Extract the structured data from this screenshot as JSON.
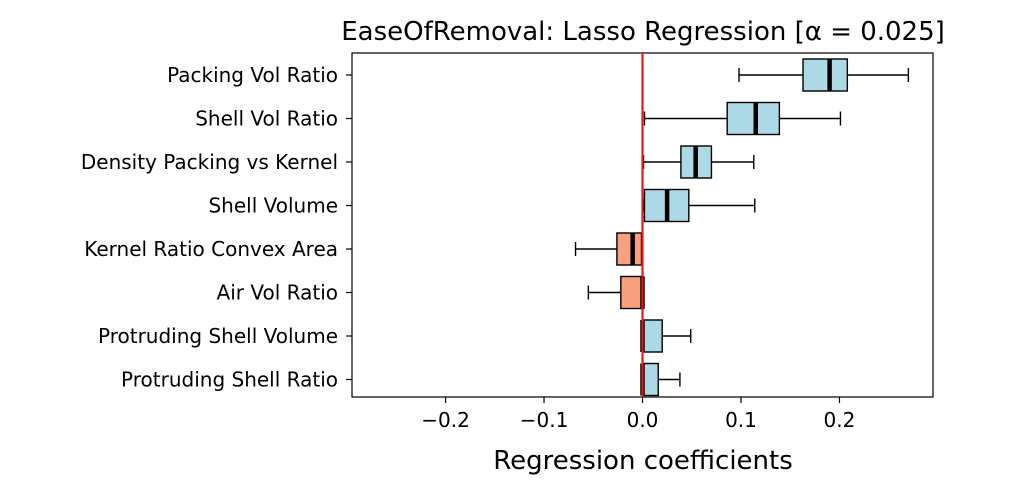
{
  "chart_data": {
    "type": "box",
    "title": "EaseOfRemoval: Lasso Regression [α = 0.025]",
    "xlabel": "Regression coefficients",
    "ylabel": "",
    "xlim": [
      -0.295,
      0.295
    ],
    "xticks": [
      -0.2,
      -0.1,
      0.0,
      0.1,
      0.2
    ],
    "xtick_labels": [
      "−0.2",
      "−0.1",
      "0.0",
      "0.1",
      "0.2"
    ],
    "reference_line": {
      "x": 0.0,
      "color": "#e41a1c"
    },
    "positive_color": "#add8e6",
    "negative_color": "#f9a07e",
    "grid": false,
    "categories": [
      "Packing Vol Ratio",
      "Shell Vol Ratio",
      "Density Packing vs Kernel",
      "Shell Volume",
      "Kernel Ratio Convex Area",
      "Air Vol Ratio",
      "Protruding Shell Volume",
      "Protruding Shell Ratio"
    ],
    "boxes": [
      {
        "whisker_low": 0.098,
        "q1": 0.163,
        "median": 0.19,
        "q3": 0.208,
        "whisker_high": 0.27
      },
      {
        "whisker_low": 0.002,
        "q1": 0.086,
        "median": 0.115,
        "q3": 0.139,
        "whisker_high": 0.201
      },
      {
        "whisker_low": 0.001,
        "q1": 0.039,
        "median": 0.054,
        "q3": 0.07,
        "whisker_high": 0.113
      },
      {
        "whisker_low": 0.001,
        "q1": 0.002,
        "median": 0.025,
        "q3": 0.047,
        "whisker_high": 0.114
      },
      {
        "whisker_low": -0.068,
        "q1": -0.026,
        "median": -0.01,
        "q3": -0.001,
        "whisker_high": -0.001
      },
      {
        "whisker_low": -0.055,
        "q1": -0.022,
        "median": 0.0,
        "q3": 0.001,
        "whisker_high": 0.001
      },
      {
        "whisker_low": 0.0,
        "q1": 0.0,
        "median": 0.0,
        "q3": 0.02,
        "whisker_high": 0.049
      },
      {
        "whisker_low": 0.0,
        "q1": 0.0,
        "median": 0.0,
        "q3": 0.016,
        "whisker_high": 0.038
      }
    ]
  }
}
